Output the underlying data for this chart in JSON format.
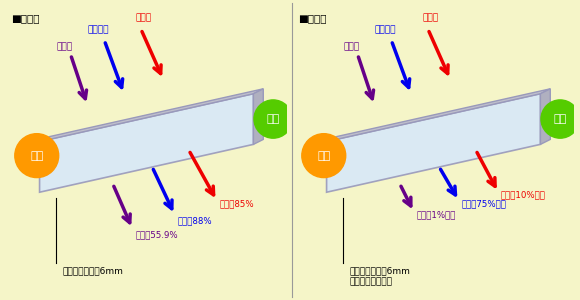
{
  "bg_color": "#F5F5C8",
  "title_before": "■塗布前",
  "title_after": "■塗布後",
  "outdoor_label": "屋外",
  "indoor_label": "屋内",
  "outdoor_color": "#FF9900",
  "indoor_color": "#55CC00",
  "ir_label": "赤外線",
  "vis_label": "可視光線",
  "uv_label": "紫外線",
  "ir_color": "#EE0000",
  "vis_color": "#0000EE",
  "uv_color": "#660088",
  "glass_face_color": "#D8E8F8",
  "glass_top_color": "#C0C0CC",
  "glass_right_color": "#B0B0C0",
  "glass_edge_color": "#9999BB",
  "glass_label_before": "フロートガラス6mm",
  "glass_label_after": "フロートガラス6mm\nガラスコート塗布",
  "before_ir_trans": "透過率85%",
  "before_vis_trans": "透過率88%",
  "before_uv_trans": "透過率55.9%",
  "after_ir_trans": "透過率10%以下",
  "after_vis_trans": "透過率75%以上",
  "after_uv_trans": "透過率1%以下",
  "divider_color": "#999999"
}
